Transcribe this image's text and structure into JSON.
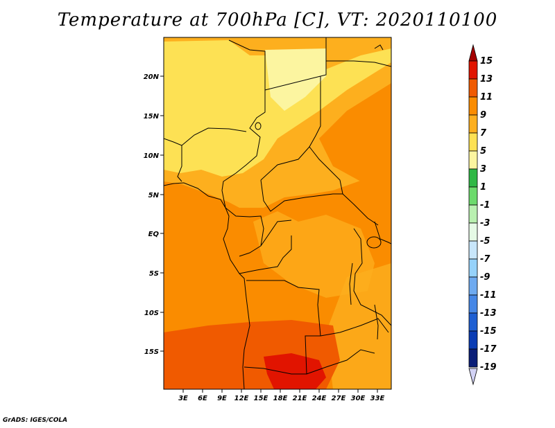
{
  "title": "Temperature at 700hPa [C], VT: 2020110100",
  "footer": "GrADS: IGES/COLA",
  "map": {
    "lat_ticks": [
      "20N",
      "15N",
      "10N",
      "5N",
      "EQ",
      "5S",
      "10S",
      "15S"
    ],
    "lon_ticks": [
      "3E",
      "6E",
      "9E",
      "12E",
      "15E",
      "18E",
      "21E",
      "24E",
      "27E",
      "30E",
      "33E"
    ]
  },
  "colorbar": {
    "labels": [
      "15",
      "13",
      "11",
      "9",
      "7",
      "5",
      "3",
      "1",
      "-1",
      "-3",
      "-5",
      "-7",
      "-9",
      "-11",
      "-13",
      "-15",
      "-17",
      "-19"
    ],
    "colors": [
      "#a50000",
      "#e11400",
      "#f05a00",
      "#fa8c00",
      "#fdaf1e",
      "#fde154",
      "#fcf5a0",
      "#2fb845",
      "#6cda6c",
      "#b9f0b0",
      "#e6fae6",
      "#c8e6fa",
      "#96d2fa",
      "#6eaaf0",
      "#4687e6",
      "#1e5fd2",
      "#0a3cb4",
      "#0a1e78",
      "#000064",
      "#d2d2f5"
    ]
  },
  "colors": {
    "t3_5": "#fcf5a0",
    "t5_7": "#fde154",
    "t7_9": "#fdaf1e",
    "t9_11": "#fa8c00",
    "t11_13": "#f05a00",
    "t13_15": "#e11400"
  }
}
